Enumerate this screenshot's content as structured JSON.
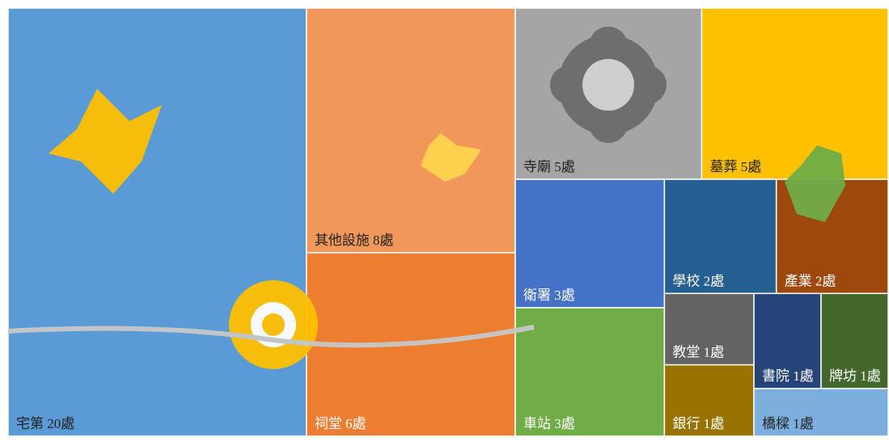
{
  "chart_data": {
    "type": "treemap",
    "value_labels": [
      "宅第 20處",
      "其他設施 8處",
      "祠堂 6處",
      "寺廟 5處",
      "墓葬 5處",
      "衛署 3處",
      "車站 3處",
      "學校 2處",
      "產業 2處",
      "教堂 1處",
      "銀行 1處",
      "書院 1處",
      "牌坊 1處",
      "橋樑 1處"
    ],
    "values": [
      20,
      8,
      6,
      5,
      5,
      3,
      3,
      2,
      2,
      1,
      1,
      1,
      1,
      1
    ],
    "colors": [
      "#5b9bd5",
      "#f1975a",
      "#ed7d31",
      "#a5a5a5",
      "#ffc000",
      "#4472c4",
      "#70ad47",
      "#255e91",
      "#9e480e",
      "#636363",
      "#997300",
      "#264478",
      "#43682b",
      "#7cafdd"
    ]
  }
}
